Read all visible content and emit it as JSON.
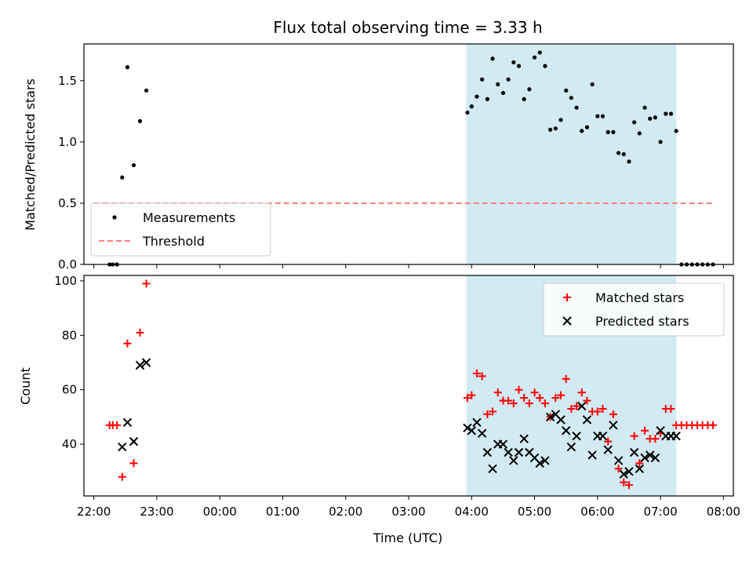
{
  "chart_data": [
    {
      "type": "scatter",
      "title": "Flux total observing time = 3.33 h",
      "xlabel": "",
      "ylabel": "Matched/Predicted stars",
      "xlim": [
        "22:00",
        "08:00"
      ],
      "ylim": [
        0,
        1.8
      ],
      "y_ticks": [
        "0.0",
        "0.5",
        "1.0",
        "1.5"
      ],
      "shaded_interval": [
        "03:55",
        "07:15"
      ],
      "shade_color": "#add8e6",
      "legend_position": "lower-left",
      "series": [
        {
          "name": "Measurements",
          "marker": "dot",
          "color": "#000000",
          "x": [
            "22:15",
            "22:18",
            "22:22",
            "22:27",
            "22:32",
            "22:38",
            "22:44",
            "22:50",
            "03:56",
            "04:00",
            "04:05",
            "04:10",
            "04:15",
            "04:20",
            "04:25",
            "04:30",
            "04:35",
            "04:40",
            "04:45",
            "04:50",
            "04:55",
            "05:00",
            "05:05",
            "05:10",
            "05:15",
            "05:20",
            "05:25",
            "05:30",
            "05:35",
            "05:40",
            "05:45",
            "05:50",
            "05:55",
            "06:00",
            "06:05",
            "06:10",
            "06:15",
            "06:20",
            "06:25",
            "06:30",
            "06:35",
            "06:40",
            "06:45",
            "06:50",
            "06:55",
            "07:00",
            "07:05",
            "07:10",
            "07:15",
            "07:20",
            "07:25",
            "07:30",
            "07:35",
            "07:40",
            "07:45",
            "07:50"
          ],
          "values": [
            0,
            0,
            0,
            0.71,
            1.61,
            0.81,
            1.17,
            1.42,
            1.24,
            1.29,
            1.37,
            1.51,
            1.35,
            1.68,
            1.47,
            1.4,
            1.51,
            1.65,
            1.62,
            1.35,
            1.43,
            1.69,
            1.73,
            1.62,
            1.1,
            1.11,
            1.18,
            1.42,
            1.36,
            1.28,
            1.09,
            1.12,
            1.47,
            1.21,
            1.21,
            1.08,
            1.08,
            0.91,
            0.9,
            0.84,
            1.16,
            1.07,
            1.28,
            1.19,
            1.2,
            1.0,
            1.23,
            1.23,
            1.09,
            0,
            0,
            0,
            0,
            0,
            0,
            0
          ]
        },
        {
          "name": "Threshold",
          "style": "dashed",
          "color": "#ff7f7f",
          "x": [
            "22:00",
            "07:50"
          ],
          "values": [
            0.5,
            0.5
          ]
        }
      ]
    },
    {
      "type": "scatter",
      "title": "",
      "xlabel": "Time (UTC)",
      "ylabel": "Count",
      "xlim": [
        "22:00",
        "08:00"
      ],
      "ylim": [
        21,
        102
      ],
      "y_ticks": [
        "40",
        "60",
        "80",
        "100"
      ],
      "x_ticks": [
        "22:00",
        "23:00",
        "00:00",
        "01:00",
        "02:00",
        "03:00",
        "04:00",
        "05:00",
        "06:00",
        "07:00",
        "08:00"
      ],
      "shaded_interval": [
        "03:55",
        "07:15"
      ],
      "shade_color": "#add8e6",
      "legend_position": "upper-right",
      "series": [
        {
          "name": "Matched stars",
          "marker": "plus",
          "color": "#ff0000",
          "x": [
            "22:15",
            "22:18",
            "22:22",
            "22:27",
            "22:32",
            "22:38",
            "22:44",
            "22:50",
            "03:56",
            "04:00",
            "04:05",
            "04:10",
            "04:15",
            "04:20",
            "04:25",
            "04:30",
            "04:35",
            "04:40",
            "04:45",
            "04:50",
            "04:55",
            "05:00",
            "05:05",
            "05:10",
            "05:15",
            "05:20",
            "05:25",
            "05:30",
            "05:35",
            "05:40",
            "05:45",
            "05:50",
            "05:55",
            "06:00",
            "06:05",
            "06:10",
            "06:15",
            "06:20",
            "06:25",
            "06:30",
            "06:35",
            "06:40",
            "06:45",
            "06:50",
            "06:55",
            "07:00",
            "07:05",
            "07:10",
            "07:15",
            "07:20",
            "07:25",
            "07:30",
            "07:35",
            "07:40",
            "07:45",
            "07:50"
          ],
          "values": [
            47,
            47,
            47,
            28,
            77,
            33,
            81,
            99,
            57,
            58,
            66,
            65,
            51,
            52,
            59,
            56,
            56,
            55,
            60,
            57,
            55,
            59,
            57,
            55,
            50,
            57,
            58,
            64,
            53,
            54,
            59,
            56,
            52,
            52,
            53,
            41,
            51,
            31,
            26,
            25,
            43,
            33,
            45,
            42,
            42,
            44,
            53,
            53,
            47,
            47,
            47,
            47,
            47,
            47,
            47,
            47
          ]
        },
        {
          "name": "Predicted stars",
          "marker": "x",
          "color": "#000000",
          "x": [
            "22:27",
            "22:32",
            "22:38",
            "22:44",
            "22:50",
            "03:56",
            "04:00",
            "04:05",
            "04:10",
            "04:15",
            "04:20",
            "04:25",
            "04:30",
            "04:35",
            "04:40",
            "04:45",
            "04:50",
            "04:55",
            "05:00",
            "05:05",
            "05:10",
            "05:15",
            "05:20",
            "05:25",
            "05:30",
            "05:35",
            "05:40",
            "05:45",
            "05:50",
            "05:55",
            "06:00",
            "06:05",
            "06:10",
            "06:15",
            "06:20",
            "06:25",
            "06:30",
            "06:35",
            "06:40",
            "06:45",
            "06:50",
            "06:55",
            "07:00",
            "07:05",
            "07:10",
            "07:15"
          ],
          "values": [
            39,
            48,
            41,
            69,
            70,
            46,
            45,
            48,
            44,
            37,
            31,
            40,
            40,
            37,
            34,
            37,
            42,
            37,
            35,
            33,
            34,
            50,
            51,
            49,
            45,
            39,
            43,
            54,
            49,
            36,
            43,
            43,
            38,
            47,
            34,
            29,
            30,
            37,
            31,
            35,
            36,
            35,
            45,
            43,
            43,
            43
          ]
        }
      ]
    }
  ]
}
